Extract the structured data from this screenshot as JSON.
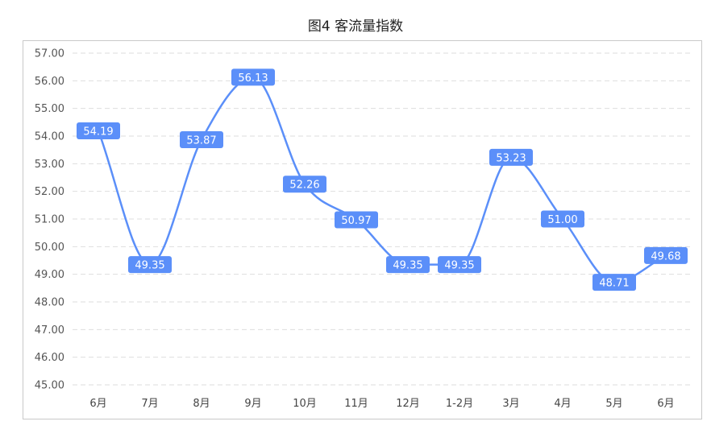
{
  "chart_data": {
    "type": "line",
    "title": "图4 客流量指数",
    "categories": [
      "6月",
      "7月",
      "8月",
      "9月",
      "10月",
      "11月",
      "12月",
      "1-2月",
      "3月",
      "4月",
      "5月",
      "6月"
    ],
    "series": [
      {
        "values": [
          54.19,
          49.35,
          53.87,
          56.13,
          52.26,
          50.97,
          49.35,
          49.35,
          53.23,
          51.0,
          48.71,
          49.68
        ]
      }
    ],
    "data_labels": [
      "54.19",
      "49.35",
      "53.87",
      "56.13",
      "52.26",
      "50.97",
      "49.35",
      "49.35",
      "53.23",
      "51.00",
      "48.71",
      "49.68"
    ],
    "yticks": [
      "45.00",
      "46.00",
      "47.00",
      "48.00",
      "49.00",
      "50.00",
      "51.00",
      "52.00",
      "53.00",
      "54.00",
      "55.00",
      "56.00",
      "57.00"
    ],
    "ylim": [
      45,
      57
    ],
    "grid": true,
    "line_color": "#5b8ff9",
    "label_bg_color": "#5b8ff9"
  }
}
